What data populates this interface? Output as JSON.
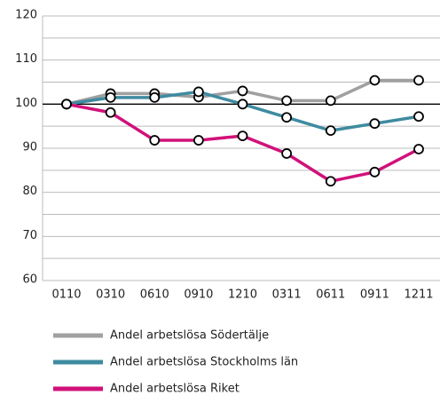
{
  "chart_data": {
    "type": "line",
    "categories": [
      "0110",
      "0310",
      "0610",
      "0910",
      "1210",
      "0311",
      "0611",
      "0911",
      "1211"
    ],
    "series": [
      {
        "name": "Andel arbetslösa Södertälje",
        "color": "#a0a0a0",
        "values": [
          100,
          102.4,
          102.4,
          101.6,
          103,
          100.8,
          100.8,
          105.4,
          105.4
        ]
      },
      {
        "name": "Andel arbetslösa Stockholms län",
        "color": "#3e8ba0",
        "values": [
          100,
          101.5,
          101.5,
          102.8,
          100,
          97,
          94,
          95.6,
          97.2
        ]
      },
      {
        "name": "Andel arbetslösa Riket",
        "color": "#d1117a",
        "values": [
          100,
          98.1,
          91.8,
          91.8,
          92.8,
          88.8,
          82.5,
          84.6,
          89.8
        ]
      }
    ],
    "ylim": [
      60,
      120
    ],
    "yticks": [
      60,
      70,
      80,
      90,
      100,
      110,
      120
    ],
    "minor_yticks": [
      65,
      75,
      85,
      95,
      105,
      115
    ],
    "reference_line": 100,
    "grid": true,
    "legend": "bottom"
  }
}
